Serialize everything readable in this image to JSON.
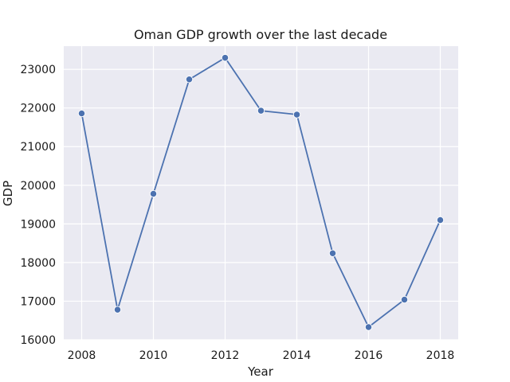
{
  "chart_data": {
    "type": "line",
    "title": "Oman GDP growth over the last decade",
    "xlabel": "Year",
    "ylabel": "GDP",
    "x": [
      2008,
      2009,
      2010,
      2011,
      2012,
      2013,
      2014,
      2015,
      2016,
      2017,
      2018
    ],
    "series": [
      {
        "values": [
          21860,
          16780,
          19780,
          22740,
          23300,
          21930,
          21830,
          18240,
          16330,
          17040,
          19100
        ]
      }
    ],
    "xlim": [
      2007.5,
      2018.5
    ],
    "ylim": [
      16000,
      23600
    ],
    "x_ticks": [
      2008,
      2010,
      2012,
      2014,
      2016,
      2018
    ],
    "y_ticks": [
      16000,
      17000,
      18000,
      19000,
      20000,
      21000,
      22000,
      23000
    ],
    "grid": true,
    "background": "#eaeaf2",
    "line_color": "#4c72b0",
    "grid_color": "#ffffff"
  }
}
